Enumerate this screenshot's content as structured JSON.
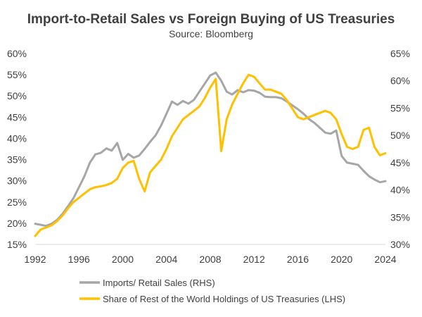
{
  "chart_data": {
    "type": "line",
    "title": "Import-to-Retail Sales vs Foreign Buying of US Treasuries",
    "subtitle": "Source: Bloomberg",
    "x_ticks": [
      "1992",
      "1996",
      "2000",
      "2004",
      "2008",
      "2012",
      "2016",
      "2020",
      "2024"
    ],
    "xlim": [
      1992,
      2024
    ],
    "y_left": {
      "ticks": [
        "15%",
        "20%",
        "25%",
        "30%",
        "35%",
        "40%",
        "45%",
        "50%",
        "55%",
        "60%"
      ],
      "ylim": [
        15,
        60
      ]
    },
    "y_right": {
      "ticks": [
        "30%",
        "35%",
        "40%",
        "45%",
        "50%",
        "55%",
        "60%",
        "65%"
      ],
      "ylim": [
        30,
        65
      ]
    },
    "grid": false,
    "legend_position": "bottom",
    "series": [
      {
        "name": "Imports/ Retail Sales (RHS)",
        "axis": "right",
        "color": "#a6a6a6",
        "x": [
          1992,
          1992.5,
          1993,
          1993.5,
          1994,
          1994.5,
          1995,
          1995.5,
          1996,
          1996.5,
          1997,
          1997.5,
          1998,
          1998.5,
          1999,
          1999.5,
          2000,
          2000.5,
          2001,
          2001.5,
          2002,
          2002.5,
          2003,
          2003.5,
          2004,
          2004.5,
          2005,
          2005.5,
          2006,
          2006.5,
          2007,
          2007.5,
          2008,
          2008.5,
          2009,
          2009.5,
          2010,
          2010.5,
          2011,
          2011.5,
          2012,
          2012.5,
          2013,
          2013.5,
          2014,
          2014.5,
          2015,
          2015.5,
          2016,
          2016.5,
          2017,
          2017.5,
          2018,
          2018.5,
          2019,
          2019.5,
          2020,
          2020.5,
          2021,
          2021.5,
          2022,
          2022.5,
          2023,
          2023.5,
          2024
        ],
        "y": [
          33.8,
          33.6,
          33.4,
          33.8,
          34.5,
          35.6,
          37.0,
          38.5,
          40.5,
          42.5,
          45.0,
          46.5,
          46.8,
          47.6,
          47.2,
          48.6,
          45.5,
          46.6,
          45.9,
          46.3,
          47.5,
          48.8,
          50.0,
          51.8,
          54.0,
          56.2,
          55.6,
          56.3,
          55.8,
          56.5,
          58.0,
          59.5,
          61.0,
          61.5,
          60.0,
          58.0,
          57.5,
          58.3,
          57.9,
          58.3,
          58.2,
          57.8,
          57.1,
          57.0,
          57.0,
          56.8,
          56.2,
          55.5,
          54.8,
          54.0,
          53.0,
          52.3,
          51.4,
          50.5,
          50.3,
          50.9,
          46.2,
          45.0,
          44.8,
          44.6,
          43.5,
          42.5,
          41.9,
          41.4,
          41.6
        ]
      },
      {
        "name": "Share of Rest of the World Holdings of US Treasuries (LHS)",
        "axis": "left",
        "color": "#ffc000",
        "x": [
          1992,
          1992.5,
          1993,
          1993.5,
          1994,
          1994.5,
          1995,
          1995.5,
          1996,
          1996.5,
          1997,
          1997.5,
          1998,
          1998.5,
          1999,
          1999.5,
          2000,
          2000.5,
          2001,
          2001.5,
          2002,
          2002.5,
          2003,
          2003.5,
          2004,
          2004.5,
          2005,
          2005.5,
          2006,
          2006.5,
          2007,
          2007.5,
          2008,
          2008.5,
          2009,
          2009.5,
          2010,
          2010.5,
          2011,
          2011.5,
          2012,
          2012.5,
          2013,
          2013.5,
          2014,
          2014.5,
          2015,
          2015.5,
          2016,
          2016.5,
          2017,
          2017.5,
          2018,
          2018.5,
          2019,
          2019.5,
          2020,
          2020.5,
          2021,
          2021.5,
          2022,
          2022.5,
          2023,
          2023.5,
          2024
        ],
        "y": [
          17.0,
          18.5,
          19.0,
          19.5,
          20.5,
          21.8,
          23.5,
          25.0,
          26.0,
          27.0,
          28.0,
          28.5,
          28.7,
          29.0,
          29.5,
          30.5,
          33.0,
          34.3,
          34.7,
          30.5,
          27.5,
          32.0,
          33.5,
          35.0,
          37.5,
          40.5,
          42.5,
          44.5,
          45.5,
          46.5,
          47.5,
          49.5,
          52.0,
          54.0,
          37.0,
          44.5,
          48.0,
          50.5,
          53.0,
          55.0,
          54.5,
          53.0,
          51.5,
          51.5,
          51.0,
          50.5,
          49.0,
          47.0,
          45.0,
          44.5,
          45.0,
          45.5,
          46.0,
          46.5,
          46.0,
          44.5,
          41.0,
          38.0,
          37.5,
          38.0,
          42.0,
          42.5,
          38.0,
          36.0,
          36.5
        ]
      }
    ]
  }
}
